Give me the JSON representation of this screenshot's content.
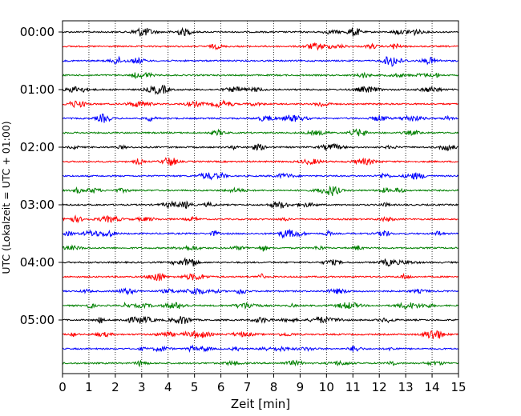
{
  "chart_data": {
    "type": "line",
    "subtype": "seismogram-helicorder",
    "title": "",
    "xlabel": "Zeit  [min]",
    "ylabel": "UTC (Lokalzeit = UTC + 01:00)",
    "xlim": [
      0,
      15
    ],
    "xticks": [
      0,
      1,
      2,
      3,
      4,
      5,
      6,
      7,
      8,
      9,
      10,
      11,
      12,
      13,
      14,
      15
    ],
    "ytick_labels": [
      "00:00",
      "01:00",
      "02:00",
      "03:00",
      "04:00",
      "05:00"
    ],
    "trace_interval_minutes": 15,
    "trace_start_times": [
      "00:00",
      "00:15",
      "00:30",
      "00:45",
      "01:00",
      "01:15",
      "01:30",
      "01:45",
      "02:00",
      "02:15",
      "02:30",
      "02:45",
      "03:00",
      "03:15",
      "03:30",
      "03:45",
      "04:00",
      "04:15",
      "04:30",
      "04:45",
      "05:00",
      "05:15",
      "05:30",
      "05:45"
    ],
    "trace_color_cycle": [
      "#000000",
      "#ff0000",
      "#0000ff",
      "#008000"
    ],
    "grid": {
      "x": true,
      "y": false,
      "style": "dotted"
    },
    "legend": null
  }
}
